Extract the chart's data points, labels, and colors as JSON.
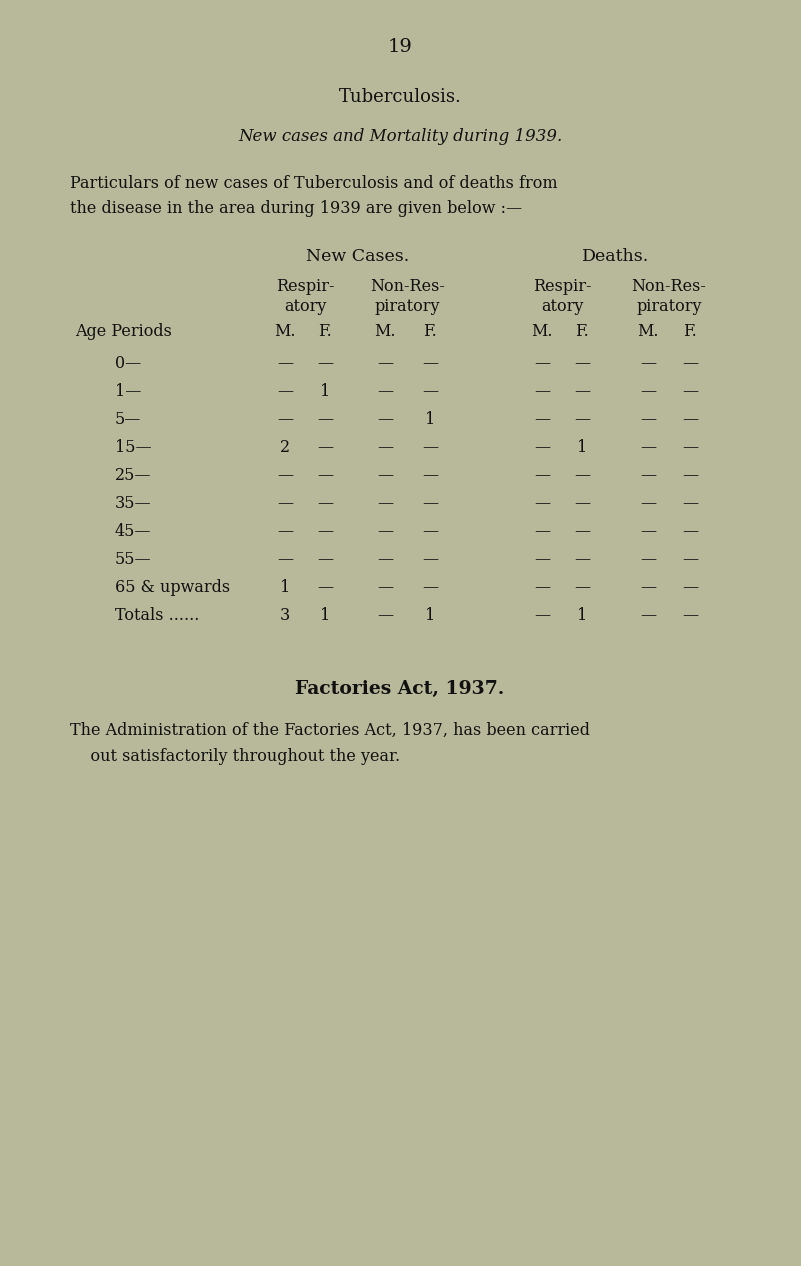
{
  "bg_color": "#b8b99a",
  "text_color": "#111111",
  "page_number": "19",
  "title": "Tuberculosis.",
  "subtitle": "New cases and Mortality during 1939.",
  "para_line1": "Particulars of new cases of Tuberculosis and of deaths from",
  "para_line2": "the disease in the area during 1939 are given below :—",
  "new_cases_header": "New Cases.",
  "deaths_header": "Deaths.",
  "age_label": "Age Periods",
  "col_headers_2": [
    "M.",
    "F.",
    "M.",
    "F.",
    "M.",
    "F.",
    "M.",
    "F."
  ],
  "age_periods": [
    "0—",
    "1—",
    "5—",
    "15—",
    "25—",
    "35—",
    "45—",
    "55—",
    "65 & upwards",
    "Totals ......"
  ],
  "table_data": [
    [
      "—",
      "—",
      "—",
      "—",
      "—",
      "—",
      "—",
      "—"
    ],
    [
      "—",
      "1",
      "—",
      "—",
      "—",
      "—",
      "—",
      "—"
    ],
    [
      "—",
      "—",
      "—",
      "1",
      "—",
      "—",
      "—",
      "—"
    ],
    [
      "2",
      "—",
      "—",
      "—",
      "—",
      "1",
      "—",
      "—"
    ],
    [
      "—",
      "—",
      "—",
      "—",
      "—",
      "—",
      "—",
      "—"
    ],
    [
      "—",
      "—",
      "—",
      "—",
      "—",
      "—",
      "—",
      "—"
    ],
    [
      "—",
      "—",
      "—",
      "—",
      "—",
      "—",
      "—",
      "—"
    ],
    [
      "—",
      "—",
      "—",
      "—",
      "—",
      "—",
      "—",
      "—"
    ],
    [
      "1",
      "—",
      "—",
      "—",
      "—",
      "—",
      "—",
      "—"
    ],
    [
      "3",
      "1",
      "—",
      "1",
      "—",
      "1",
      "—",
      "—"
    ]
  ],
  "factories_header": "Factories Act, 1937.",
  "factories_line1": "The Administration of the Factories Act, 1937, has been carried",
  "factories_line2": "    out satisfactorily throughout the year."
}
